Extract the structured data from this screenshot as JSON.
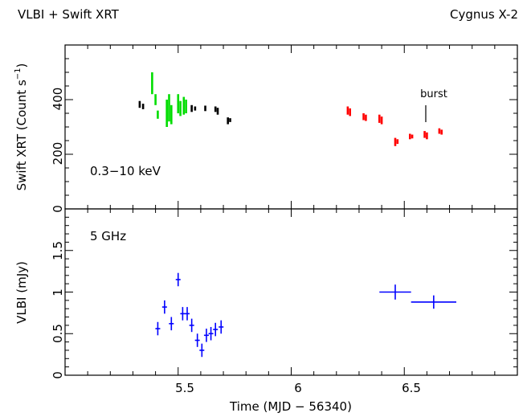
{
  "header": {
    "left": "VLBI + Swift XRT",
    "right": "Cygnus X-2"
  },
  "x_axis": {
    "label": "Time (MJD − 56340)",
    "ticks": [
      "5.5",
      "6",
      "6.5"
    ],
    "range": [
      5.0,
      7.0
    ]
  },
  "chart_data": [
    {
      "type": "scatter",
      "panel": "top",
      "ylabel_main": "Swift XRT (Count s",
      "ylabel_sup": "−1",
      "ylabel_end": ")",
      "ylim": [
        0,
        600
      ],
      "yticks": [
        "0",
        "200",
        "400"
      ],
      "band_label": "0.3−10 keV",
      "annotation": {
        "text": "burst",
        "x": 6.595
      },
      "colors": {
        "black": "#000000",
        "green": "#00dd00",
        "red": "#ff0000"
      },
      "series": [
        {
          "color_key": "black",
          "segments": [
            {
              "x": 5.33,
              "y": [
                370,
                395
              ]
            },
            {
              "x": 5.345,
              "y": [
                365,
                385
              ]
            },
            {
              "x": 5.56,
              "y": [
                355,
                380
              ]
            },
            {
              "x": 5.575,
              "y": [
                360,
                375
              ]
            },
            {
              "x": 5.62,
              "y": [
                358,
                378
              ]
            },
            {
              "x": 5.665,
              "y": [
                355,
                375
              ]
            },
            {
              "x": 5.675,
              "y": [
                345,
                370
              ]
            },
            {
              "x": 5.72,
              "y": [
                310,
                335
              ]
            },
            {
              "x": 5.73,
              "y": [
                318,
                332
              ]
            }
          ]
        },
        {
          "color_key": "green",
          "segments": [
            {
              "x": 5.385,
              "y": [
                420,
                500
              ]
            },
            {
              "x": 5.4,
              "y": [
                380,
                420
              ]
            },
            {
              "x": 5.41,
              "y": [
                330,
                360
              ]
            },
            {
              "x": 5.45,
              "y": [
                300,
                400
              ]
            },
            {
              "x": 5.46,
              "y": [
                320,
                420
              ]
            },
            {
              "x": 5.47,
              "y": [
                310,
                380
              ]
            },
            {
              "x": 5.5,
              "y": [
                350,
                420
              ]
            },
            {
              "x": 5.51,
              "y": [
                340,
                395
              ]
            },
            {
              "x": 5.525,
              "y": [
                345,
                410
              ]
            },
            {
              "x": 5.535,
              "y": [
                350,
                400
              ]
            }
          ]
        },
        {
          "color_key": "red",
          "segments": [
            {
              "x": 6.25,
              "y": [
                345,
                375
              ]
            },
            {
              "x": 6.26,
              "y": [
                340,
                368
              ]
            },
            {
              "x": 6.32,
              "y": [
                325,
                350
              ]
            },
            {
              "x": 6.33,
              "y": [
                322,
                345
              ]
            },
            {
              "x": 6.39,
              "y": [
                315,
                345
              ]
            },
            {
              "x": 6.4,
              "y": [
                310,
                338
              ]
            },
            {
              "x": 6.46,
              "y": [
                230,
                260
              ]
            },
            {
              "x": 6.47,
              "y": [
                238,
                255
              ]
            },
            {
              "x": 6.525,
              "y": [
                255,
                275
              ]
            },
            {
              "x": 6.535,
              "y": [
                258,
                272
              ]
            },
            {
              "x": 6.59,
              "y": [
                260,
                285
              ]
            },
            {
              "x": 6.6,
              "y": [
                255,
                280
              ]
            },
            {
              "x": 6.655,
              "y": [
                275,
                295
              ]
            },
            {
              "x": 6.665,
              "y": [
                272,
                290
              ]
            }
          ]
        }
      ]
    },
    {
      "type": "scatter",
      "panel": "bottom",
      "ylabel": "VLBI (mJy)",
      "ylim": [
        0,
        2.0
      ],
      "yticks": [
        "0",
        "0.5",
        "1",
        "1.5"
      ],
      "band_label": "5 GHz",
      "color": "#0000ff",
      "points": [
        {
          "x": 5.41,
          "y": 0.56,
          "xerr": 0.005,
          "yerr": 0.08
        },
        {
          "x": 5.44,
          "y": 0.82,
          "xerr": 0.005,
          "yerr": 0.08
        },
        {
          "x": 5.47,
          "y": 0.62,
          "xerr": 0.005,
          "yerr": 0.08
        },
        {
          "x": 5.5,
          "y": 1.15,
          "xerr": 0.005,
          "yerr": 0.08
        },
        {
          "x": 5.52,
          "y": 0.74,
          "xerr": 0.005,
          "yerr": 0.08
        },
        {
          "x": 5.54,
          "y": 0.74,
          "xerr": 0.005,
          "yerr": 0.08
        },
        {
          "x": 5.56,
          "y": 0.6,
          "xerr": 0.005,
          "yerr": 0.08
        },
        {
          "x": 5.585,
          "y": 0.42,
          "xerr": 0.005,
          "yerr": 0.08
        },
        {
          "x": 5.605,
          "y": 0.3,
          "xerr": 0.005,
          "yerr": 0.08
        },
        {
          "x": 5.625,
          "y": 0.48,
          "xerr": 0.005,
          "yerr": 0.08
        },
        {
          "x": 5.645,
          "y": 0.5,
          "xerr": 0.005,
          "yerr": 0.08
        },
        {
          "x": 5.665,
          "y": 0.55,
          "xerr": 0.005,
          "yerr": 0.08
        },
        {
          "x": 5.69,
          "y": 0.58,
          "xerr": 0.005,
          "yerr": 0.08
        },
        {
          "x": 6.46,
          "y": 1.0,
          "xerr": 0.07,
          "yerr": 0.09
        },
        {
          "x": 6.63,
          "y": 0.88,
          "xerr": 0.1,
          "yerr": 0.08
        }
      ]
    }
  ]
}
